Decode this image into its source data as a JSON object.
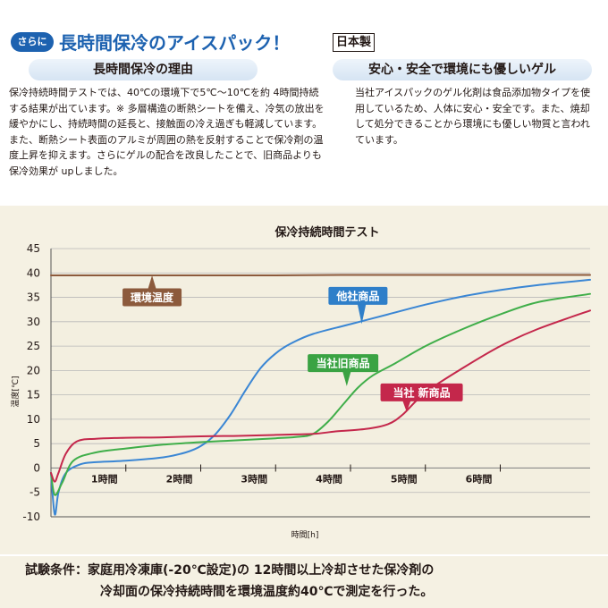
{
  "header": {
    "badge": "さらに",
    "title": "長時間保冷のアイスパック！",
    "origin": "日本製"
  },
  "left_section": {
    "heading": "長時間保冷の理由",
    "body": "保冷持続時間テストでは、40℃の環境下で5℃～10℃を約 4時間持続する結果が出ています。※ 多層構造の断熱シートを備え、冷気の放出を緩やかにし、持続時間の延長と、接触面の冷え過ぎも軽減しています。また、断熱シート表面のアルミが周囲の熱を反射することで保冷剤の温度上昇を抑えます。さらにゲルの配合を改良したことで、旧商品よりも保冷効果が upしました。"
  },
  "right_section": {
    "heading": "安心・安全で環境にも優しいゲル",
    "body": "当社アイスパックのゲル化剤は食品添加物タイプを使用しているため、人体に安心・安全です。また、焼却して処分できることから環境にも優しい物質と言われています。"
  },
  "chart_data": {
    "type": "line",
    "title": "保冷持続時間テスト",
    "xlabel": "時間[h]",
    "ylabel": "温度[℃]",
    "xlim": [
      0,
      7.2
    ],
    "ylim": [
      -10,
      45
    ],
    "yticks": [
      -10,
      -5,
      0,
      5,
      10,
      15,
      20,
      25,
      30,
      35,
      40,
      45
    ],
    "xticks": [
      {
        "value": 1,
        "label": "1時間"
      },
      {
        "value": 2,
        "label": "2時間"
      },
      {
        "value": 3,
        "label": "3時間"
      },
      {
        "value": 4,
        "label": "4時間"
      },
      {
        "value": 5,
        "label": "5時間"
      },
      {
        "value": 6,
        "label": "6時間"
      }
    ],
    "grid": "horizontal",
    "series": [
      {
        "name": "環境温度",
        "color": "#8c5a3c",
        "x": [
          0,
          0.5,
          1,
          2,
          3,
          4,
          5,
          6,
          7.2
        ],
        "y": [
          39.5,
          39.5,
          39.5,
          39.5,
          39.5,
          39.6,
          39.6,
          39.6,
          39.6
        ]
      },
      {
        "name": "他社商品",
        "color": "#3a86d4",
        "x": [
          0,
          0.05,
          0.1,
          0.2,
          0.4,
          0.6,
          1.0,
          1.5,
          1.8,
          2.0,
          2.2,
          2.4,
          2.6,
          2.8,
          3.0,
          3.2,
          3.5,
          4.0,
          4.5,
          5.0,
          5.5,
          6.0,
          6.5,
          7.2
        ],
        "y": [
          -1,
          -9.5,
          -5,
          -1,
          0.8,
          1.2,
          1.5,
          2.2,
          3.2,
          4.5,
          7.0,
          11.0,
          16.0,
          20.5,
          23.5,
          25.5,
          27.5,
          29.5,
          31.5,
          33.5,
          35.2,
          36.5,
          37.5,
          38.6
        ]
      },
      {
        "name": "当社旧商品",
        "color": "#3fae49",
        "x": [
          0,
          0.05,
          0.15,
          0.3,
          0.6,
          1.0,
          1.5,
          2.0,
          2.5,
          3.0,
          3.3,
          3.5,
          3.7,
          3.9,
          4.1,
          4.3,
          4.6,
          5.0,
          5.5,
          6.0,
          6.5,
          7.2
        ],
        "y": [
          -1,
          -5.5,
          -3,
          1.5,
          3.2,
          4.0,
          4.8,
          5.3,
          5.7,
          6.1,
          6.4,
          7.0,
          9.5,
          13.0,
          16.5,
          19.0,
          21.5,
          25.0,
          28.5,
          31.5,
          34.0,
          35.7
        ]
      },
      {
        "name": "当社新商品",
        "color": "#c4274b",
        "x": [
          0,
          0.05,
          0.1,
          0.2,
          0.35,
          0.6,
          1.0,
          1.5,
          2.0,
          2.5,
          3.0,
          3.5,
          3.8,
          4.2,
          4.5,
          4.7,
          5.0,
          5.5,
          6.0,
          6.5,
          7.2
        ],
        "y": [
          -1,
          -2.8,
          -1,
          3.0,
          5.5,
          6.0,
          6.2,
          6.3,
          6.5,
          6.6,
          6.8,
          7.0,
          7.5,
          8.0,
          9.0,
          11.0,
          15.5,
          20.5,
          25.0,
          28.5,
          32.3
        ]
      }
    ],
    "series_labels": [
      {
        "text": "環境温度",
        "color": "#8c5a3c",
        "x": 1.35,
        "y": 35,
        "pointer_x": 1.35,
        "pointer_y": 39.5
      },
      {
        "text": "他社商品",
        "color": "#2f7fc9",
        "x": 4.1,
        "y": 35.3,
        "pointer_x": 4.15,
        "pointer_y": 29.5
      },
      {
        "text": "当社旧商品",
        "color": "#3aa343",
        "x": 3.9,
        "y": 21.5,
        "pointer_x": 3.95,
        "pointer_y": 16.8
      },
      {
        "text": "当社 新商品",
        "color": "#c4274b",
        "x": 4.95,
        "y": 15.5,
        "pointer_x": 4.75,
        "pointer_y": 11.5
      }
    ]
  },
  "footer": {
    "line1": "試験条件：家庭用冷凍庫(-20℃設定)の 12時間以上冷却させた保冷剤の",
    "line2": "冷却面の保冷持続時間を環境温度約40℃で測定を行った。"
  }
}
